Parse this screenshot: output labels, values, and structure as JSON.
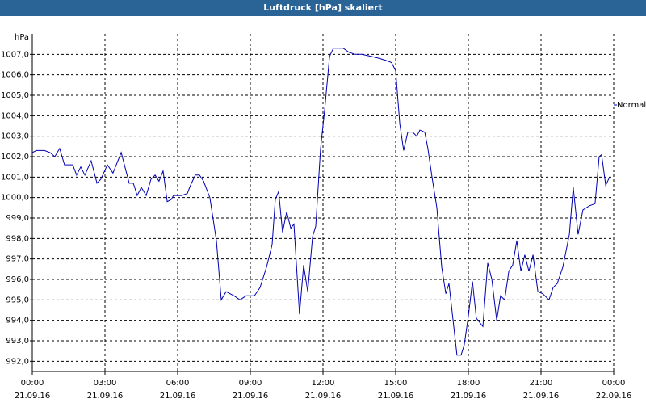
{
  "chart_data": {
    "type": "line",
    "title": "Luftdruck [hPa] skaliert",
    "y_unit": "hPa",
    "xlim": [
      0,
      24
    ],
    "ylim": [
      991.5,
      1008
    ],
    "xticks": [
      {
        "value": 0,
        "label": "00:00"
      },
      {
        "value": 3,
        "label": "03:00"
      },
      {
        "value": 6,
        "label": "06:00"
      },
      {
        "value": 9,
        "label": "09:00"
      },
      {
        "value": 12,
        "label": "12:00"
      },
      {
        "value": 15,
        "label": "15:00"
      },
      {
        "value": 18,
        "label": "18:00"
      },
      {
        "value": 21,
        "label": "21:00"
      },
      {
        "value": 24,
        "label": "00:00"
      }
    ],
    "xtick_dates": [
      "21.09.16",
      "21.09.16",
      "21.09.16",
      "21.09.16",
      "21.09.16",
      "21.09.16",
      "21.09.16",
      "21.09.16",
      "22.09.16"
    ],
    "yticks": [
      {
        "value": 992,
        "label": "992,0"
      },
      {
        "value": 993,
        "label": "993,0"
      },
      {
        "value": 994,
        "label": "994,0"
      },
      {
        "value": 995,
        "label": "995,0"
      },
      {
        "value": 996,
        "label": "996,0"
      },
      {
        "value": 997,
        "label": "997,0"
      },
      {
        "value": 998,
        "label": "998,0"
      },
      {
        "value": 999,
        "label": "999,0"
      },
      {
        "value": 1000,
        "label": "1000,0"
      },
      {
        "value": 1001,
        "label": "1001,0"
      },
      {
        "value": 1002,
        "label": "1002,0"
      },
      {
        "value": 1003,
        "label": "1003,0"
      },
      {
        "value": 1004,
        "label": "1004,0"
      },
      {
        "value": 1005,
        "label": "1005,0"
      },
      {
        "value": 1006,
        "label": "1006,0"
      },
      {
        "value": 1007,
        "label": "1007,0"
      }
    ],
    "grid": true,
    "x": [
      0,
      0.17,
      0.5,
      0.73,
      0.93,
      1.13,
      1.33,
      1.67,
      1.83,
      2.0,
      2.17,
      2.43,
      2.67,
      2.83,
      3.1,
      3.33,
      3.67,
      4.0,
      4.17,
      4.33,
      4.5,
      4.7,
      4.9,
      5.07,
      5.23,
      5.4,
      5.57,
      5.73,
      5.83,
      6.17,
      6.4,
      6.53,
      6.73,
      6.9,
      7.07,
      7.33,
      7.6,
      7.8,
      8.0,
      8.33,
      8.57,
      8.83,
      9.17,
      9.4,
      9.67,
      9.9,
      10.03,
      10.17,
      10.33,
      10.5,
      10.67,
      10.8,
      11.03,
      11.2,
      11.37,
      11.57,
      11.7,
      11.9,
      12.07,
      12.27,
      12.43,
      12.6,
      12.83,
      13.07,
      13.33,
      13.6,
      14.0,
      14.33,
      14.6,
      14.83,
      15.0,
      15.17,
      15.33,
      15.5,
      15.7,
      15.87,
      16.0,
      16.2,
      16.33,
      16.5,
      16.7,
      16.9,
      17.07,
      17.2,
      17.53,
      17.7,
      17.83,
      18.0,
      18.17,
      18.33,
      18.6,
      18.8,
      18.97,
      19.17,
      19.33,
      19.5,
      19.67,
      19.83,
      20.0,
      20.17,
      20.33,
      20.5,
      20.67,
      20.87,
      21.07,
      21.33,
      21.5,
      21.67,
      21.9,
      22.17,
      22.33,
      22.53,
      22.73,
      23.0,
      23.23,
      23.4,
      23.5,
      23.67,
      23.83
    ],
    "series": [
      {
        "name": "Normal",
        "color": "#0000b0",
        "values": [
          1002.2,
          1002.3,
          1002.3,
          1002.2,
          1002.0,
          1002.4,
          1001.6,
          1001.6,
          1001.1,
          1001.5,
          1001.1,
          1001.8,
          1000.7,
          1000.9,
          1001.6,
          1001.2,
          1002.2,
          1000.7,
          1000.7,
          1000.1,
          1000.5,
          1000.1,
          1000.9,
          1001.1,
          1000.8,
          1001.3,
          999.8,
          999.9,
          1000.1,
          1000.1,
          1000.2,
          1000.6,
          1001.1,
          1001.1,
          1000.8,
          1000.0,
          997.9,
          995.0,
          995.4,
          995.2,
          995.0,
          995.2,
          995.2,
          995.6,
          996.6,
          997.7,
          999.9,
          1000.3,
          998.3,
          999.3,
          998.5,
          998.7,
          994.3,
          996.7,
          995.4,
          998.1,
          998.6,
          1002.4,
          1004.3,
          1006.9,
          1007.3,
          1007.3,
          1007.3,
          1007.1,
          1007.0,
          1007.0,
          1006.9,
          1006.8,
          1006.7,
          1006.6,
          1006.2,
          1003.6,
          1002.3,
          1003.2,
          1003.2,
          1003.0,
          1003.3,
          1003.2,
          1002.4,
          1001.0,
          999.5,
          996.6,
          995.3,
          995.8,
          992.3,
          992.3,
          992.8,
          994.2,
          995.9,
          994.1,
          993.7,
          996.8,
          996.0,
          994.0,
          995.2,
          995.0,
          996.4,
          996.7,
          997.9,
          996.4,
          997.2,
          996.4,
          997.2,
          995.4,
          995.3,
          995.0,
          995.6,
          995.8,
          996.6,
          998.2,
          1000.5,
          998.2,
          999.4,
          999.6,
          999.7,
          1002.0,
          1002.1,
          1000.6,
          1001.0
        ]
      }
    ]
  }
}
